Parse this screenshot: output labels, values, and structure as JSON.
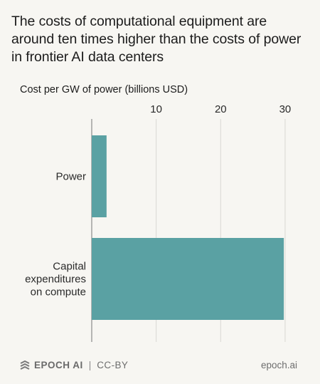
{
  "header": {
    "title": "The costs of computational equipment are around ten times higher than the costs of power in frontier AI data centers"
  },
  "chart_data": {
    "type": "bar",
    "orientation": "horizontal",
    "title": "The costs of computational equipment are around ten times higher than the costs of power in frontier AI data centers",
    "xlabel": "Cost per GW of power (billions USD)",
    "ylabel": "",
    "categories": [
      "Power",
      "Capital expenditures on compute"
    ],
    "category_lines": [
      [
        "Power"
      ],
      [
        "Capital",
        "expenditures",
        "on compute"
      ]
    ],
    "values": [
      2.3,
      29.8
    ],
    "xlim": [
      0,
      31
    ],
    "xticks": [
      10,
      20,
      30
    ],
    "grid": true,
    "legend": "none",
    "bar_color": "#5aa1a3"
  },
  "footer": {
    "brand": "EPOCH AI",
    "separator": "|",
    "license": "CC-BY",
    "site": "epoch.ai"
  }
}
